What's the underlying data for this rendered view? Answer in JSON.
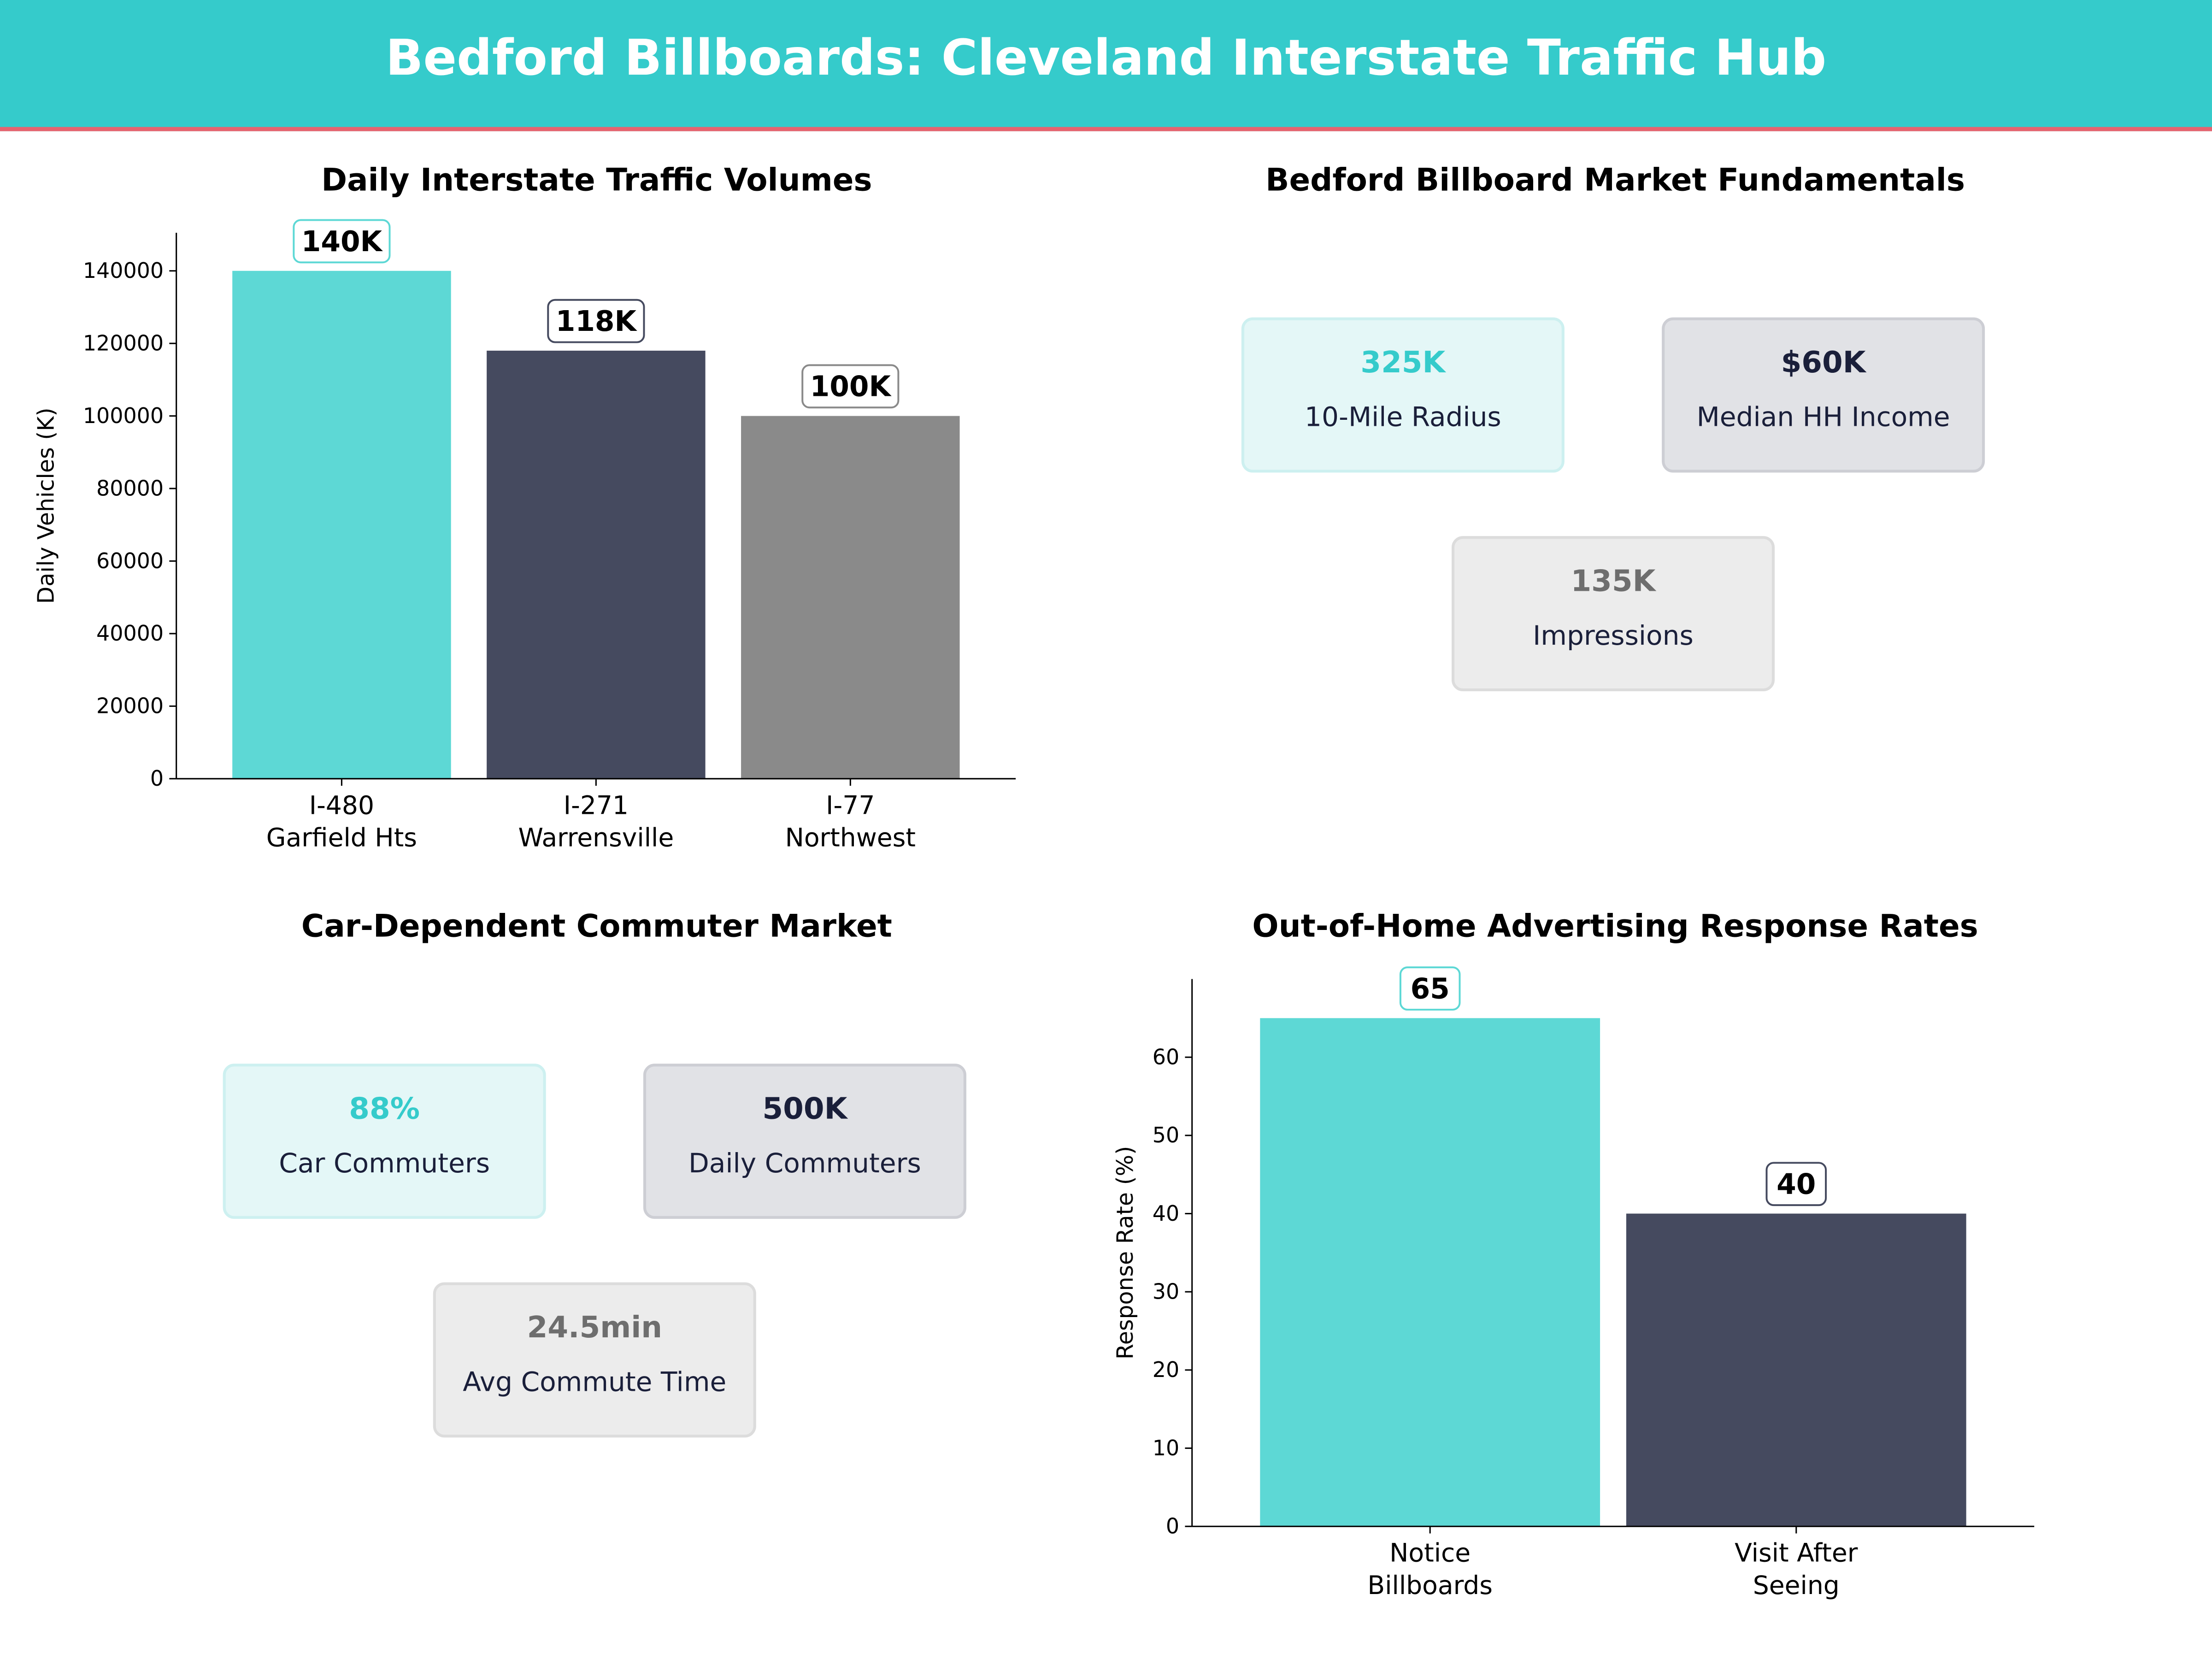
{
  "header": {
    "title": "Bedford Billboards: Cleveland Interstate Traffic Hub"
  },
  "colors": {
    "teal": "#35cbcb",
    "accent_line": "#e8636f",
    "bar_teal": "#5dd8d5",
    "bar_dark": "#454a5f",
    "bar_gray": "#8a8a8a",
    "navy": "#1a1f3a"
  },
  "market_fundamentals": {
    "title": "Bedford Billboard Market Fundamentals",
    "cards": [
      {
        "value": "325K",
        "label": "10-Mile Radius"
      },
      {
        "value": "$60K",
        "label": "Median HH Income"
      },
      {
        "value": "135K",
        "label": "Impressions"
      }
    ]
  },
  "commuter_market": {
    "title": "Car-Dependent Commuter Market",
    "cards": [
      {
        "value": "88%",
        "label": "Car Commuters"
      },
      {
        "value": "500K",
        "label": "Daily Commuters"
      },
      {
        "value": "24.5min",
        "label": "Avg Commute Time"
      }
    ]
  },
  "chart_data": [
    {
      "type": "bar",
      "title": "Daily Interstate Traffic Volumes",
      "xlabel": "",
      "ylabel": "Daily Vehicles (K)",
      "categories": [
        [
          "I-480",
          "Garfield Hts"
        ],
        [
          "I-271",
          "Warrensville"
        ],
        [
          "I-77",
          "Northwest"
        ]
      ],
      "values": [
        140000,
        118000,
        100000
      ],
      "data_labels": [
        "140K",
        "118K",
        "100K"
      ],
      "bar_colors": [
        "#5dd8d5",
        "#454a5f",
        "#8a8a8a"
      ],
      "yticks": [
        0,
        20000,
        40000,
        60000,
        80000,
        100000,
        120000,
        140000
      ],
      "ylim": [
        0,
        150500
      ],
      "grid": false
    },
    {
      "type": "bar",
      "title": "Out-of-Home Advertising Response Rates",
      "xlabel": "",
      "ylabel": "Response Rate (%)",
      "categories": [
        [
          "Notice",
          "Billboards"
        ],
        [
          "Visit After",
          "Seeing"
        ]
      ],
      "values": [
        65,
        40
      ],
      "data_labels": [
        "65",
        "40"
      ],
      "bar_colors": [
        "#5dd8d5",
        "#454a5f"
      ],
      "yticks": [
        0,
        10,
        20,
        30,
        40,
        50,
        60
      ],
      "ylim": [
        0,
        70
      ],
      "grid": false
    }
  ]
}
